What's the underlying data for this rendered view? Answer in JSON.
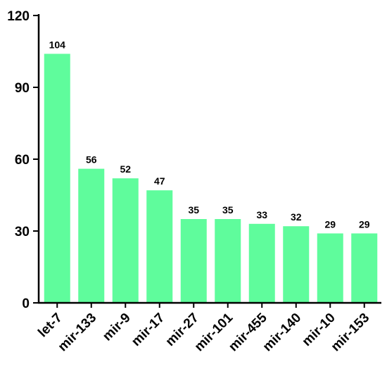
{
  "chart_data": {
    "type": "bar",
    "categories": [
      "let-7",
      "mir-133",
      "mir-9",
      "mir-17",
      "mir-27",
      "mir-101",
      "mir-455",
      "mir-140",
      "mir-10",
      "mir-153"
    ],
    "values": [
      104,
      56,
      52,
      47,
      35,
      35,
      33,
      32,
      29,
      29
    ],
    "title": "",
    "xlabel": "",
    "ylabel": "",
    "ylim": [
      0,
      120
    ],
    "yticks": [
      0,
      30,
      60,
      90,
      120
    ],
    "bar_color": "#5ffc9c",
    "axis_color": "#000000",
    "grid": false,
    "legend": "none"
  }
}
